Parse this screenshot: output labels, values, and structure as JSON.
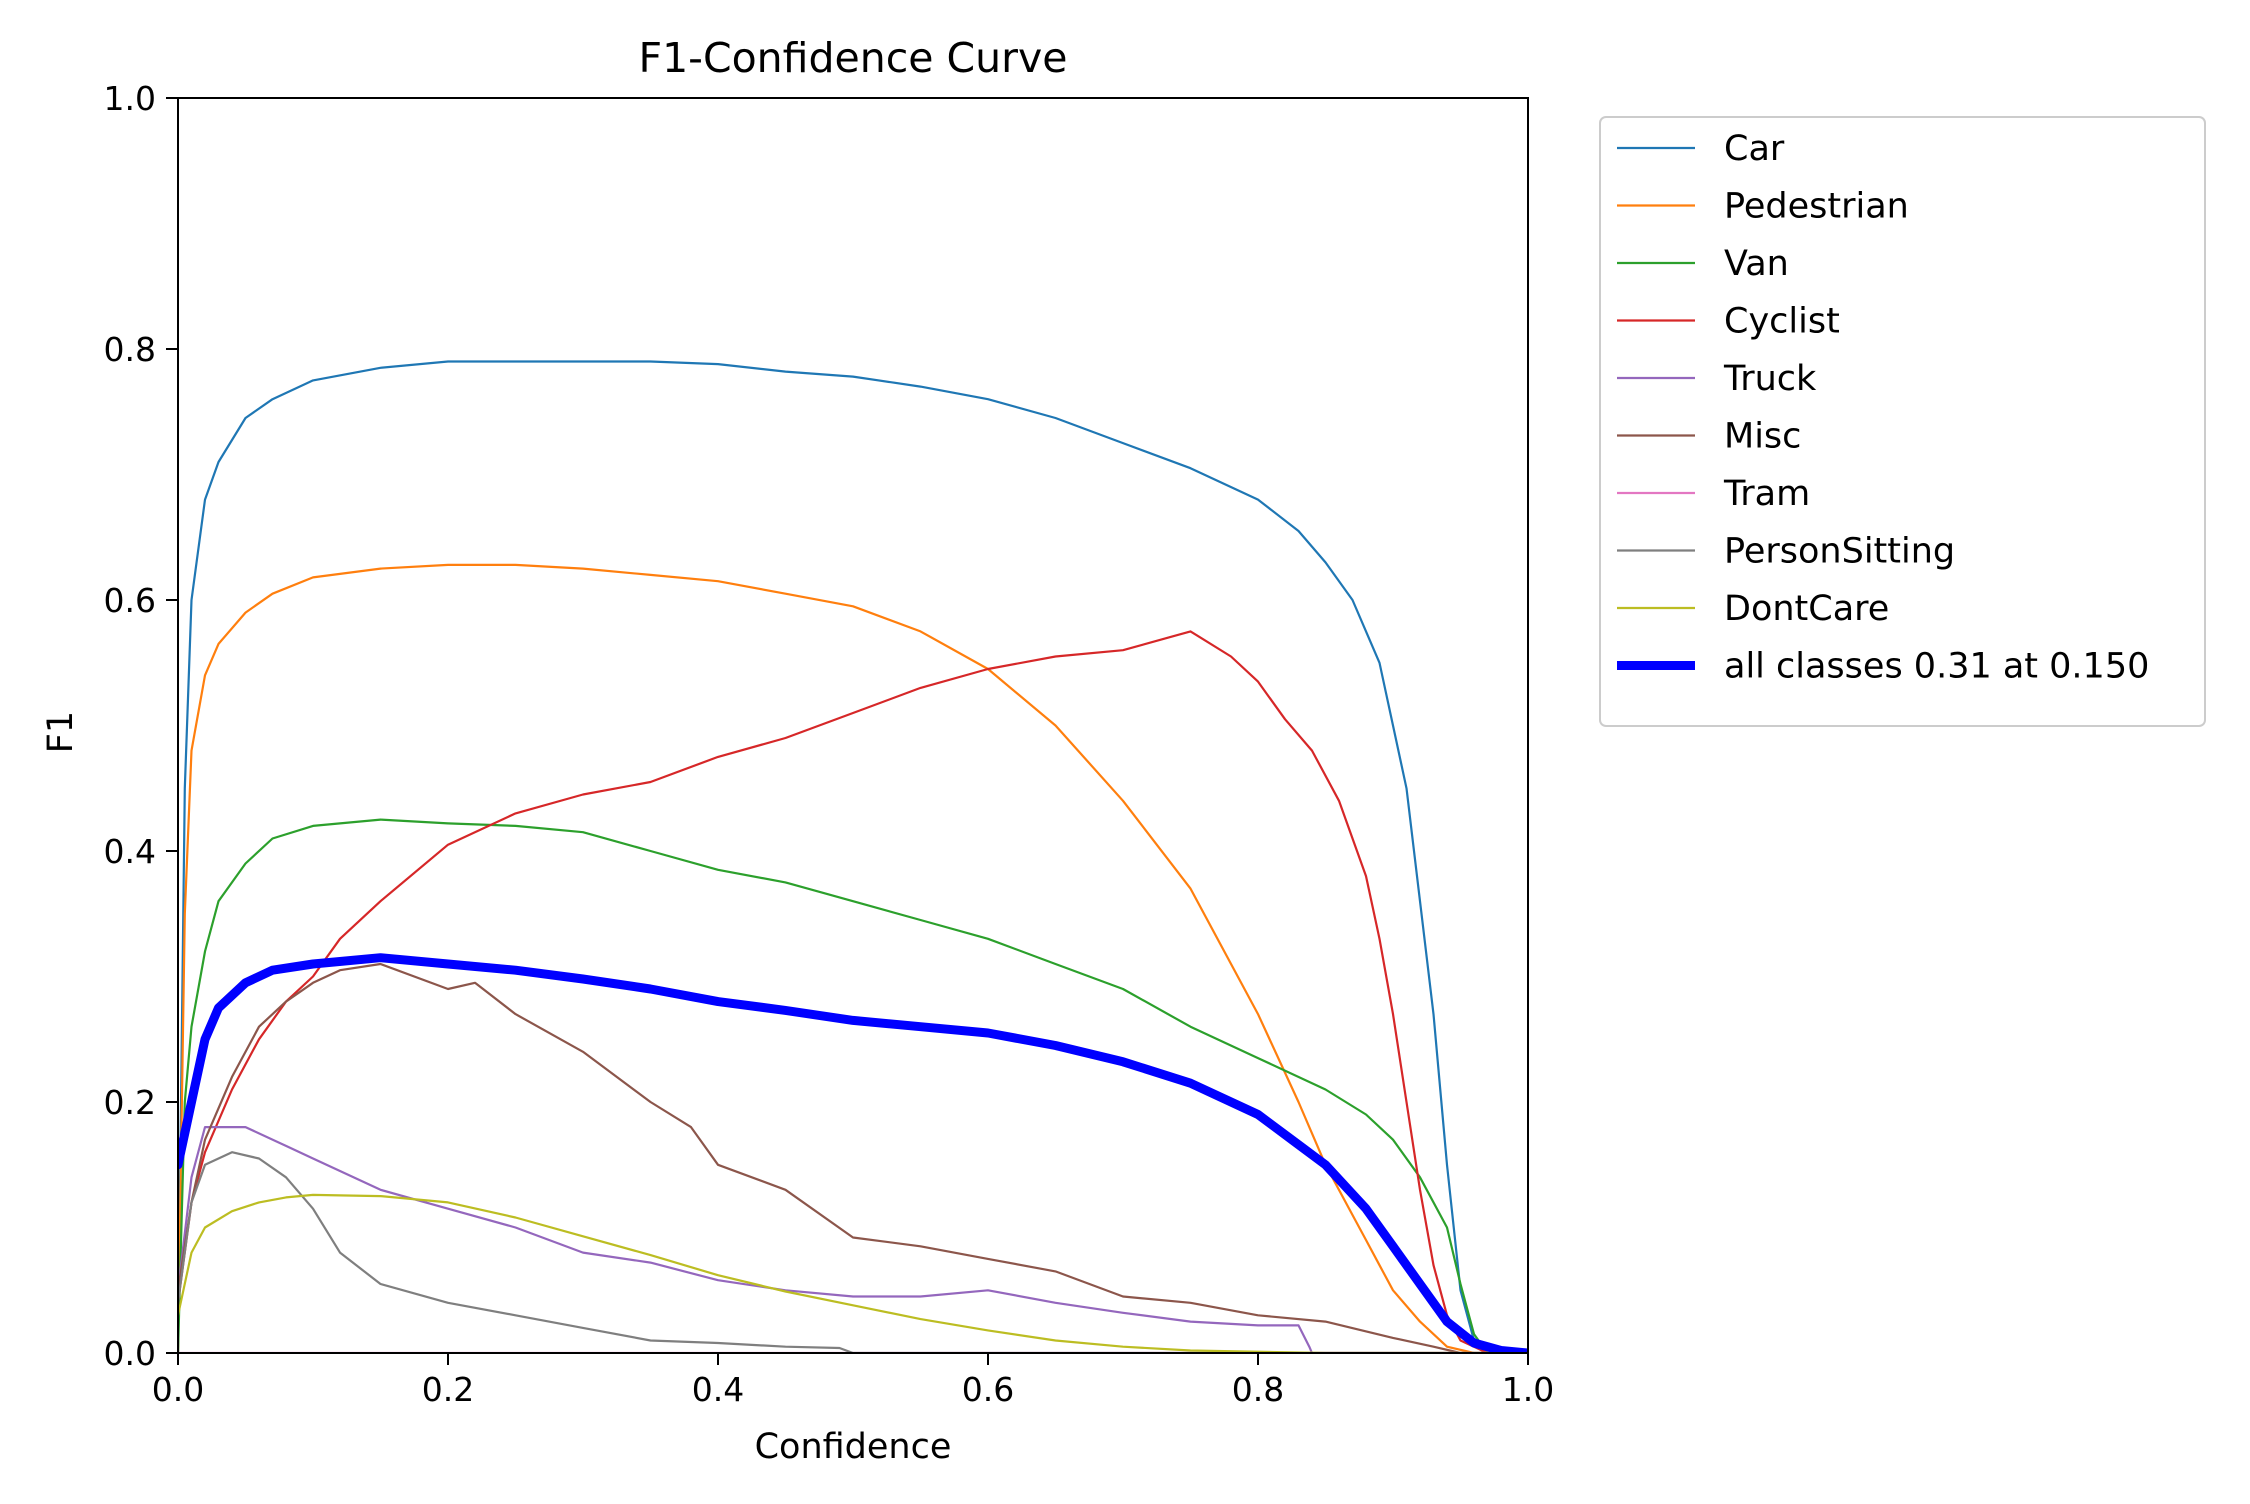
{
  "chart_data": {
    "type": "line",
    "title": "F1-Confidence Curve",
    "xlabel": "Confidence",
    "ylabel": "F1",
    "xlim": [
      0,
      1
    ],
    "ylim": [
      0,
      1
    ],
    "xticks": [
      "0.0",
      "0.2",
      "0.4",
      "0.6",
      "0.8",
      "1.0"
    ],
    "yticks": [
      "0.0",
      "0.2",
      "0.4",
      "0.6",
      "0.8",
      "1.0"
    ],
    "grid": false,
    "legend_position": "outside upper right",
    "series": [
      {
        "name": "Car",
        "color": "#1f77b4",
        "width": "normal",
        "x": [
          0,
          0.005,
          0.01,
          0.02,
          0.03,
          0.05,
          0.07,
          0.1,
          0.15,
          0.2,
          0.25,
          0.3,
          0.35,
          0.4,
          0.45,
          0.5,
          0.55,
          0.6,
          0.65,
          0.7,
          0.75,
          0.8,
          0.83,
          0.85,
          0.87,
          0.89,
          0.91,
          0.93,
          0.94,
          0.95,
          0.96,
          0.97,
          1.0
        ],
        "y": [
          0.0,
          0.45,
          0.6,
          0.68,
          0.71,
          0.745,
          0.76,
          0.775,
          0.785,
          0.79,
          0.79,
          0.79,
          0.79,
          0.788,
          0.782,
          0.778,
          0.77,
          0.76,
          0.745,
          0.725,
          0.705,
          0.68,
          0.655,
          0.63,
          0.6,
          0.55,
          0.45,
          0.27,
          0.15,
          0.05,
          0.01,
          0.0,
          0.0
        ]
      },
      {
        "name": "Pedestrian",
        "color": "#ff7f0e",
        "width": "normal",
        "x": [
          0,
          0.005,
          0.01,
          0.02,
          0.03,
          0.05,
          0.07,
          0.1,
          0.15,
          0.2,
          0.25,
          0.3,
          0.35,
          0.4,
          0.45,
          0.5,
          0.55,
          0.6,
          0.65,
          0.7,
          0.75,
          0.8,
          0.83,
          0.85,
          0.87,
          0.88,
          0.89,
          0.9,
          0.92,
          0.94,
          0.96,
          0.97,
          1.0
        ],
        "y": [
          0.0,
          0.35,
          0.48,
          0.54,
          0.565,
          0.59,
          0.605,
          0.618,
          0.625,
          0.628,
          0.628,
          0.625,
          0.62,
          0.615,
          0.605,
          0.595,
          0.575,
          0.545,
          0.5,
          0.44,
          0.37,
          0.27,
          0.2,
          0.15,
          0.11,
          0.09,
          0.07,
          0.05,
          0.025,
          0.005,
          0.0,
          0.0,
          0.0
        ]
      },
      {
        "name": "Van",
        "color": "#2ca02c",
        "width": "normal",
        "x": [
          0,
          0.005,
          0.01,
          0.02,
          0.03,
          0.05,
          0.07,
          0.1,
          0.15,
          0.2,
          0.25,
          0.3,
          0.35,
          0.4,
          0.45,
          0.5,
          0.55,
          0.6,
          0.65,
          0.7,
          0.75,
          0.8,
          0.85,
          0.88,
          0.9,
          0.92,
          0.94,
          0.95,
          0.96,
          0.97,
          1.0
        ],
        "y": [
          0.0,
          0.2,
          0.26,
          0.32,
          0.36,
          0.39,
          0.41,
          0.42,
          0.425,
          0.422,
          0.42,
          0.415,
          0.4,
          0.385,
          0.375,
          0.36,
          0.345,
          0.33,
          0.31,
          0.29,
          0.26,
          0.235,
          0.21,
          0.19,
          0.17,
          0.14,
          0.1,
          0.055,
          0.015,
          0.0,
          0.0
        ]
      },
      {
        "name": "Cyclist",
        "color": "#d62728",
        "width": "normal",
        "x": [
          0,
          0.01,
          0.02,
          0.04,
          0.06,
          0.08,
          0.1,
          0.12,
          0.15,
          0.2,
          0.25,
          0.3,
          0.35,
          0.4,
          0.45,
          0.5,
          0.55,
          0.6,
          0.65,
          0.7,
          0.75,
          0.78,
          0.8,
          0.82,
          0.84,
          0.86,
          0.88,
          0.89,
          0.9,
          0.91,
          0.92,
          0.93,
          0.94,
          0.95,
          0.97,
          1.0
        ],
        "y": [
          0.04,
          0.12,
          0.16,
          0.21,
          0.25,
          0.28,
          0.3,
          0.33,
          0.36,
          0.405,
          0.43,
          0.445,
          0.455,
          0.475,
          0.49,
          0.51,
          0.53,
          0.545,
          0.555,
          0.56,
          0.575,
          0.555,
          0.535,
          0.505,
          0.48,
          0.44,
          0.38,
          0.33,
          0.27,
          0.2,
          0.13,
          0.07,
          0.03,
          0.01,
          0.0,
          0.0
        ]
      },
      {
        "name": "Truck",
        "color": "#9467bd",
        "width": "normal",
        "x": [
          0,
          0.01,
          0.02,
          0.05,
          0.08,
          0.1,
          0.15,
          0.2,
          0.25,
          0.3,
          0.35,
          0.4,
          0.45,
          0.5,
          0.55,
          0.6,
          0.65,
          0.7,
          0.75,
          0.8,
          0.83,
          0.838,
          0.84,
          1.0
        ],
        "y": [
          0.05,
          0.14,
          0.18,
          0.18,
          0.165,
          0.155,
          0.13,
          0.115,
          0.1,
          0.08,
          0.072,
          0.058,
          0.05,
          0.045,
          0.045,
          0.05,
          0.04,
          0.032,
          0.025,
          0.022,
          0.022,
          0.005,
          0.0,
          0.0
        ]
      },
      {
        "name": "Misc",
        "color": "#8c564b",
        "width": "normal",
        "x": [
          0,
          0.01,
          0.02,
          0.04,
          0.06,
          0.08,
          0.1,
          0.12,
          0.15,
          0.2,
          0.22,
          0.25,
          0.3,
          0.35,
          0.38,
          0.4,
          0.45,
          0.5,
          0.55,
          0.6,
          0.65,
          0.7,
          0.75,
          0.8,
          0.85,
          0.9,
          0.93,
          0.95,
          1.0
        ],
        "y": [
          0.05,
          0.12,
          0.17,
          0.22,
          0.26,
          0.28,
          0.295,
          0.305,
          0.31,
          0.29,
          0.295,
          0.27,
          0.24,
          0.2,
          0.18,
          0.15,
          0.13,
          0.092,
          0.085,
          0.075,
          0.065,
          0.045,
          0.04,
          0.03,
          0.025,
          0.012,
          0.005,
          0.0,
          0.0
        ]
      },
      {
        "name": "Tram",
        "color": "#e377c2",
        "width": "normal",
        "x": [
          0,
          1.0
        ],
        "y": [
          0.0,
          0.0
        ]
      },
      {
        "name": "PersonSitting",
        "color": "#7f7f7f",
        "width": "normal",
        "x": [
          0,
          0.01,
          0.02,
          0.04,
          0.06,
          0.08,
          0.1,
          0.12,
          0.15,
          0.2,
          0.25,
          0.3,
          0.35,
          0.4,
          0.45,
          0.49,
          0.5,
          1.0
        ],
        "y": [
          0.04,
          0.12,
          0.15,
          0.16,
          0.155,
          0.14,
          0.115,
          0.08,
          0.055,
          0.04,
          0.03,
          0.02,
          0.01,
          0.008,
          0.005,
          0.004,
          0.0,
          0.0
        ]
      },
      {
        "name": "DontCare",
        "color": "#bcbd22",
        "width": "normal",
        "x": [
          0,
          0.01,
          0.02,
          0.04,
          0.06,
          0.08,
          0.1,
          0.15,
          0.2,
          0.25,
          0.3,
          0.35,
          0.4,
          0.45,
          0.5,
          0.55,
          0.6,
          0.65,
          0.7,
          0.75,
          0.8,
          0.85,
          1.0
        ],
        "y": [
          0.03,
          0.08,
          0.1,
          0.113,
          0.12,
          0.124,
          0.126,
          0.125,
          0.12,
          0.108,
          0.093,
          0.078,
          0.062,
          0.049,
          0.038,
          0.027,
          0.018,
          0.01,
          0.005,
          0.002,
          0.001,
          0.0,
          0.0
        ]
      },
      {
        "name": "all classes 0.31 at 0.150",
        "color": "#0000ff",
        "width": "thick",
        "x": [
          0,
          0.01,
          0.02,
          0.03,
          0.05,
          0.07,
          0.1,
          0.15,
          0.2,
          0.25,
          0.3,
          0.35,
          0.4,
          0.45,
          0.5,
          0.55,
          0.6,
          0.65,
          0.7,
          0.75,
          0.8,
          0.85,
          0.88,
          0.9,
          0.92,
          0.94,
          0.96,
          0.98,
          1.0
        ],
        "y": [
          0.15,
          0.2,
          0.25,
          0.275,
          0.295,
          0.305,
          0.31,
          0.315,
          0.31,
          0.305,
          0.298,
          0.29,
          0.28,
          0.273,
          0.265,
          0.26,
          0.255,
          0.245,
          0.232,
          0.215,
          0.19,
          0.15,
          0.115,
          0.085,
          0.055,
          0.025,
          0.008,
          0.002,
          0.0
        ]
      }
    ]
  }
}
